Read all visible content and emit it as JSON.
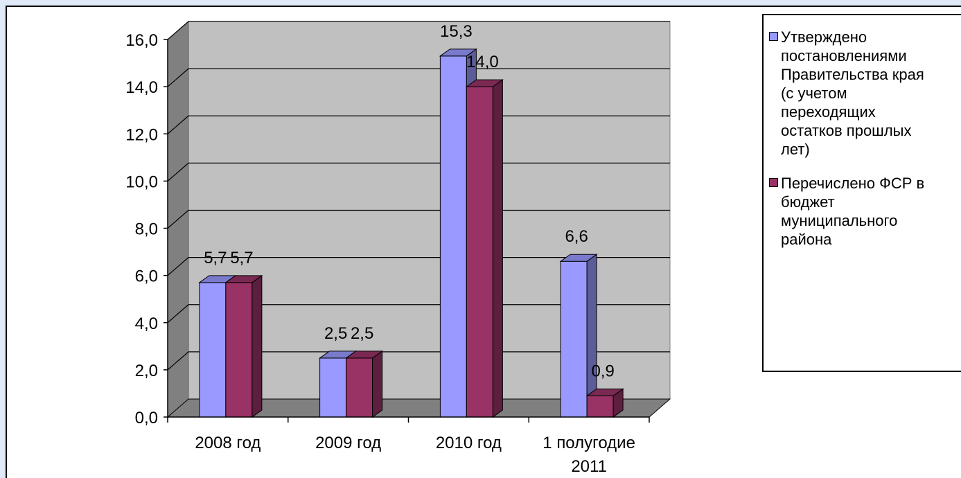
{
  "chart_data": {
    "type": "bar",
    "categories": [
      "2008 год",
      "2009 год",
      "2010 год",
      "1 полугодие\n2011"
    ],
    "series": [
      {
        "name": "Утверждено\nпостановлениями\nПравительства края\n(с учетом\nпереходящих\nостатков прошлых\nлет)",
        "values": [
          5.7,
          2.5,
          15.3,
          6.6
        ],
        "labels": [
          "5,7",
          "2,5",
          "15,3",
          "6,6"
        ],
        "color": "#9999ff"
      },
      {
        "name": "Перечислено ФСР в\nбюджет\nмуниципального\nрайона",
        "values": [
          5.7,
          2.5,
          14.0,
          0.9
        ],
        "labels": [
          "5,7",
          "2,5",
          "14,0",
          "0,9"
        ],
        "color": "#993366"
      }
    ],
    "yticks": [
      "0,0",
      "2,0",
      "4,0",
      "6,0",
      "8,0",
      "10,0",
      "12,0",
      "14,0",
      "16,0"
    ],
    "ylim": [
      0,
      16
    ],
    "grid": true,
    "legend_position": "right",
    "style": "3d-clustered-column"
  }
}
